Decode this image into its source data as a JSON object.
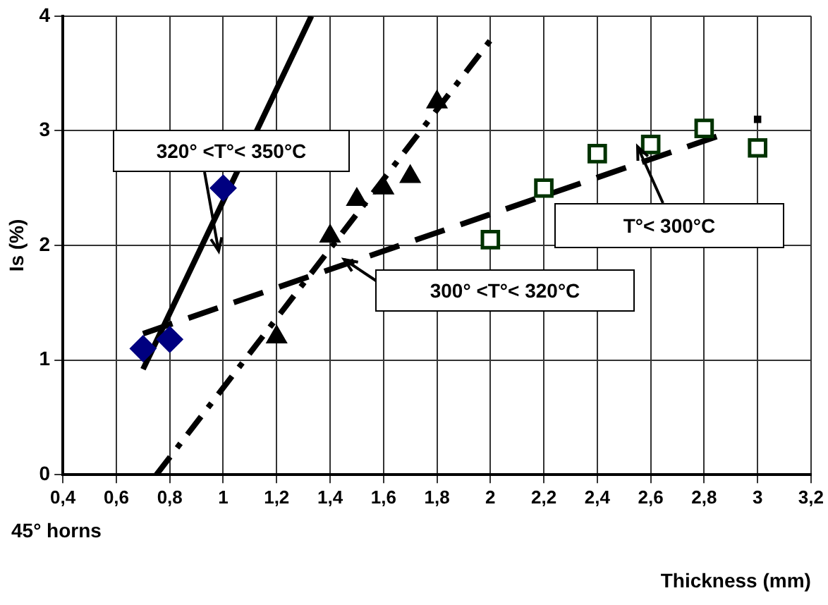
{
  "chart_data": {
    "type": "scatter",
    "xlabel": "Thickness (mm)",
    "ylabel": "Is (%)",
    "xlim": [
      0.4,
      3.2
    ],
    "ylim": [
      0,
      4
    ],
    "xticks": [
      {
        "value": 0.4,
        "label": "0,4"
      },
      {
        "value": 0.6,
        "label": "0,6"
      },
      {
        "value": 0.8,
        "label": "0,8"
      },
      1,
      {
        "value": 1.2,
        "label": "1,2"
      },
      {
        "value": 1.4,
        "label": "1,4"
      },
      {
        "value": 1.6,
        "label": "1,6"
      },
      {
        "value": 1.8,
        "label": "1,8"
      },
      2,
      {
        "value": 2.2,
        "label": "2,2"
      },
      {
        "value": 2.4,
        "label": "2,4"
      },
      {
        "value": 2.6,
        "label": "2,6"
      },
      {
        "value": 2.8,
        "label": "2,8"
      },
      3,
      {
        "value": 3.2,
        "label": "3,2"
      }
    ],
    "yticks": [
      0,
      1,
      2,
      3,
      4
    ],
    "grid": true,
    "legend": false,
    "series": [
      {
        "marker": "diamond",
        "color": "#000080",
        "x": [
          0.7,
          0.8,
          1.0
        ],
        "values": [
          1.1,
          1.18,
          2.5
        ]
      },
      {
        "marker": "triangle",
        "color": "#000000",
        "x": [
          1.2,
          1.4,
          1.5,
          1.6,
          1.7,
          1.8
        ],
        "values": [
          1.2,
          2.08,
          2.4,
          2.5,
          2.6,
          3.25
        ]
      },
      {
        "marker": "square",
        "color": "#003300",
        "x": [
          2.0,
          2.2,
          2.4,
          2.6,
          2.8,
          3.0
        ],
        "values": [
          2.05,
          2.5,
          2.8,
          2.88,
          3.02,
          2.85
        ]
      },
      {
        "marker": "square",
        "color": "#000000",
        "x": [
          3.0
        ],
        "values": [
          3.1
        ]
      },
      {
        "type": "line",
        "line_style": "solid",
        "color": "#000000",
        "x": [
          0.7,
          1.33
        ],
        "values": [
          0.92,
          4.0
        ]
      },
      {
        "type": "line",
        "line_style": "dotted",
        "color": "#000000",
        "x": [
          0.75,
          2.02
        ],
        "values": [
          0,
          3.85
        ]
      },
      {
        "type": "line",
        "line_style": "dashed",
        "color": "#000000",
        "x": [
          0.7,
          2.86
        ],
        "values": [
          1.23,
          2.96
        ]
      }
    ],
    "annotations": [
      "320° <T°< 350°C",
      "300° <T°< 320°C",
      "T°< 300°C",
      "45° horns"
    ]
  }
}
